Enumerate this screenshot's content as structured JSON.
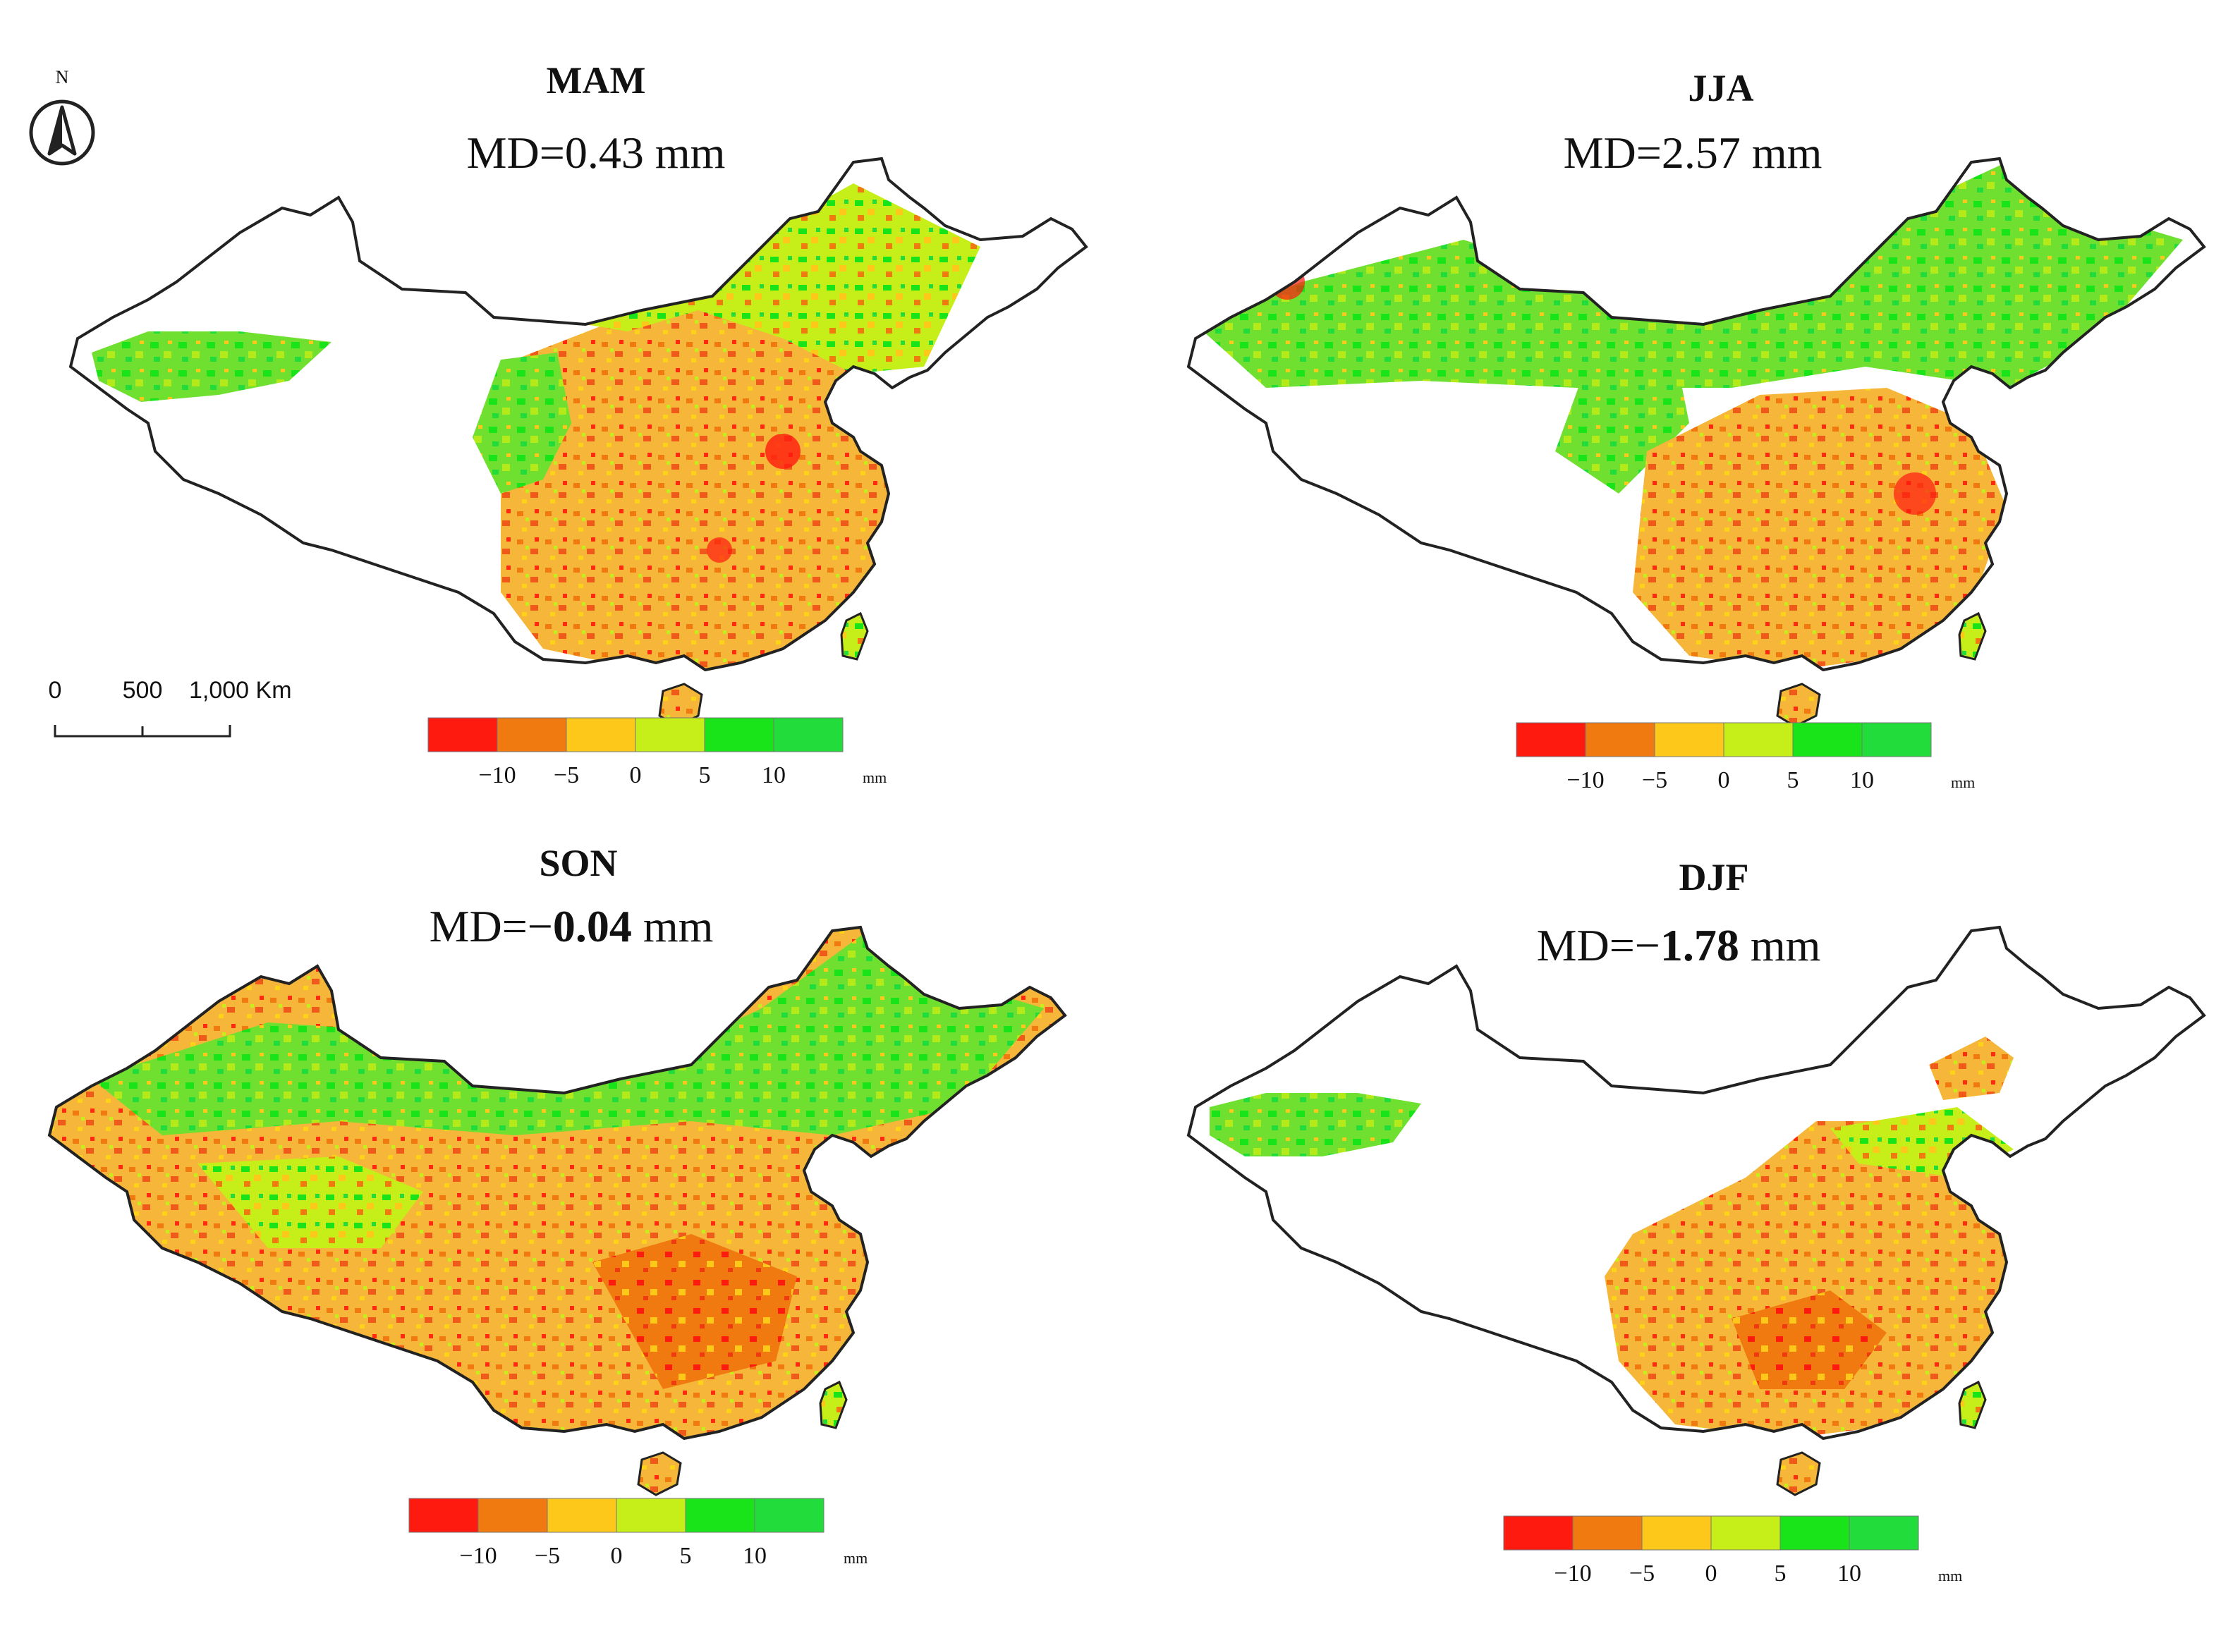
{
  "figure": {
    "north_label": "N",
    "scalebar": {
      "labels": [
        "0",
        "500",
        "1,000 Km"
      ]
    },
    "legend": {
      "colors": [
        "#ff1a10",
        "#f07a10",
        "#fdc81a",
        "#c6ee18",
        "#19e419",
        "#21dc3a"
      ],
      "ticks": [
        "−10",
        "−5",
        "0",
        "5",
        "10"
      ],
      "unit": "mm"
    },
    "panels": [
      {
        "season": "MAM",
        "md_prefix": "MD=",
        "md_value": "0.43",
        "md_unit": "mm",
        "md_value_bold": false
      },
      {
        "season": "JJA",
        "md_prefix": "MD=",
        "md_value": "2.57",
        "md_unit": "mm",
        "md_value_bold": false
      },
      {
        "season": "SON",
        "md_prefix": "MD=−",
        "md_value": "0.04",
        "md_unit": "mm",
        "md_value_bold": true
      },
      {
        "season": "DJF",
        "md_prefix": "MD=−",
        "md_value": "1.78",
        "md_unit": "mm",
        "md_value_bold": true
      }
    ]
  }
}
